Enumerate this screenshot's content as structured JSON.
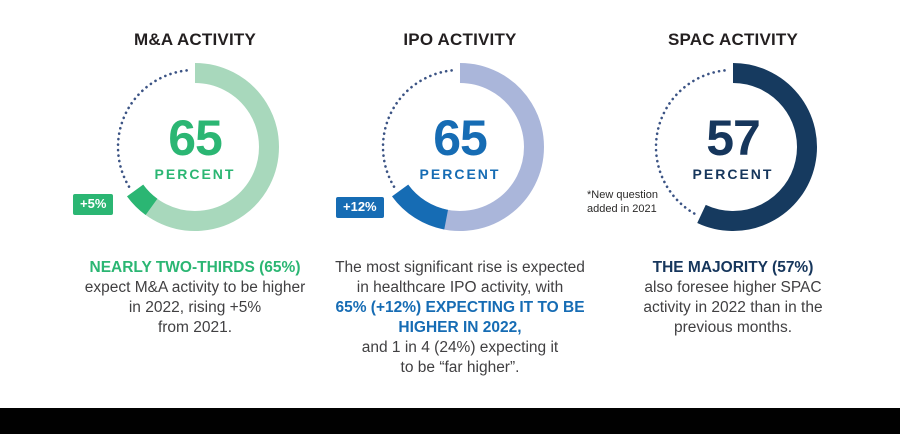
{
  "page": {
    "background": "#ffffff",
    "footer_bar_color": "#010101",
    "dot_color": "#3b5384"
  },
  "charts": [
    {
      "title": "M&A ACTIVITY",
      "value": "65",
      "value_label": "PERCENT",
      "percent": 65,
      "increment_percent": 5,
      "badge": "+5%",
      "colors": {
        "arc": "#a8d8bc",
        "accent": "#2bb673",
        "number": "#2bb673",
        "emphasis": "#2bb673",
        "dots": "#3b5384"
      },
      "caption": [
        {
          "text": "NEARLY TWO-THIRDS (65%)",
          "emphasis": true
        },
        {
          "text": "expect M&A activity to be higher",
          "emphasis": false
        },
        {
          "text": "in 2022, rising +5%",
          "emphasis": false
        },
        {
          "text": "from 2021.",
          "emphasis": false
        }
      ]
    },
    {
      "title": "IPO ACTIVITY",
      "value": "65",
      "value_label": "PERCENT",
      "percent": 65,
      "increment_percent": 12,
      "badge": "+12%",
      "colors": {
        "arc": "#aab6da",
        "accent": "#166cb4",
        "number": "#166cb4",
        "emphasis": "#166cb4",
        "dots": "#3b5384"
      },
      "caption": [
        {
          "text": "The most significant rise is expected",
          "emphasis": false
        },
        {
          "text": "in healthcare IPO activity, with",
          "emphasis": false
        },
        {
          "text": "65% (+12%) EXPECTING IT TO BE",
          "emphasis": true
        },
        {
          "text": "HIGHER IN 2022,",
          "emphasis": true
        },
        {
          "text": "and 1 in 4 (24%) expecting it",
          "emphasis": false
        },
        {
          "text": "to be “far higher”.",
          "emphasis": false
        }
      ]
    },
    {
      "title": "SPAC ACTIVITY",
      "value": "57",
      "value_label": "PERCENT",
      "percent": 57,
      "increment_percent": 0,
      "badge": "",
      "footnote_lines": [
        "*New question",
        "added in 2021"
      ],
      "colors": {
        "arc": "#163a5f",
        "accent": "#163a5f",
        "number": "#16365c",
        "emphasis": "#16365c",
        "dots": "#3b5384"
      },
      "caption": [
        {
          "text": "THE MAJORITY (57%)",
          "emphasis": true
        },
        {
          "text": "also foresee higher SPAC",
          "emphasis": false
        },
        {
          "text": "activity in 2022 than in the",
          "emphasis": false
        },
        {
          "text": "previous months.",
          "emphasis": false
        }
      ]
    }
  ],
  "chart_data": [
    {
      "type": "pie",
      "variant": "donut",
      "title": "M&A ACTIVITY",
      "center_value": 65,
      "center_label": "PERCENT",
      "slices": [
        {
          "label": "expect higher M&A activity in 2022",
          "value": 65
        },
        {
          "label": "remainder (dotted)",
          "value": 35
        }
      ],
      "highlight_segment": {
        "label": "+5% rise from 2021",
        "value": 5
      },
      "annotation": "+5%"
    },
    {
      "type": "pie",
      "variant": "donut",
      "title": "IPO ACTIVITY",
      "center_value": 65,
      "center_label": "PERCENT",
      "slices": [
        {
          "label": "expecting IPO activity higher in 2022",
          "value": 65
        },
        {
          "label": "remainder (dotted)",
          "value": 35
        }
      ],
      "highlight_segment": {
        "label": "+12% rise from 2021",
        "value": 12
      },
      "annotation": "+12%"
    },
    {
      "type": "pie",
      "variant": "donut",
      "title": "SPAC ACTIVITY",
      "center_value": 57,
      "center_label": "PERCENT",
      "slices": [
        {
          "label": "foresee higher SPAC activity in 2022",
          "value": 57
        },
        {
          "label": "remainder (dotted)",
          "value": 43
        }
      ],
      "highlight_segment": null,
      "annotation": "*New question added in 2021"
    }
  ]
}
